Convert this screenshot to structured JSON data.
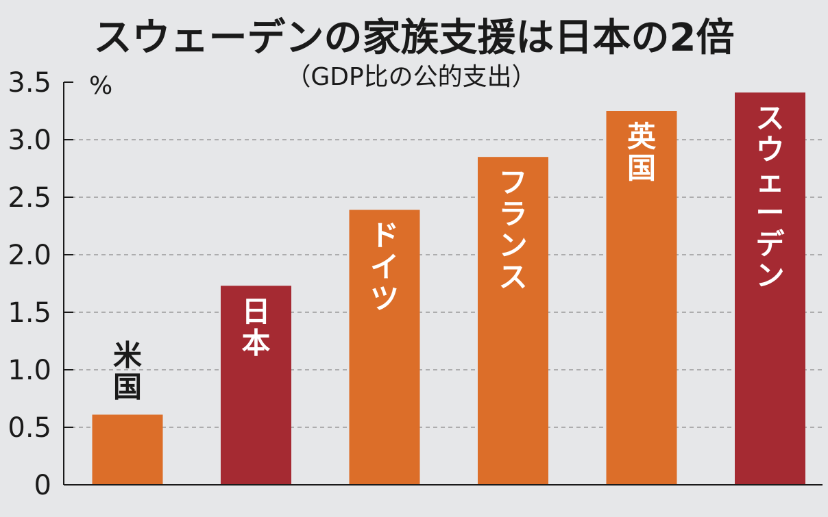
{
  "colors": {
    "background": "#e6e7e9",
    "orange": "#dc6e29",
    "red": "#a52a32",
    "gridline": "#9a9a9a",
    "axis": "#1a1a1a"
  },
  "chart_data": {
    "type": "bar",
    "title": "スウェーデンの家族支援は日本の2倍",
    "subtitle": "（GDP比の公的支出）",
    "ylabel": "%",
    "xlabel": "",
    "ylim": [
      0,
      3.5
    ],
    "yticks": [
      "0",
      "0.5",
      "1.0",
      "1.5",
      "2.0",
      "2.5",
      "3.0",
      "3.5"
    ],
    "grid": true,
    "categories": [
      "米国",
      "日本",
      "ドイツ",
      "フランス",
      "英国",
      "スウェーデン"
    ],
    "values": [
      0.61,
      1.73,
      2.39,
      2.85,
      3.25,
      3.41
    ],
    "bar_colors": [
      "#dc6e29",
      "#a52a32",
      "#dc6e29",
      "#dc6e29",
      "#dc6e29",
      "#a52a32"
    ],
    "label_position": [
      "above",
      "inside",
      "inside",
      "inside",
      "inside",
      "inside"
    ]
  }
}
